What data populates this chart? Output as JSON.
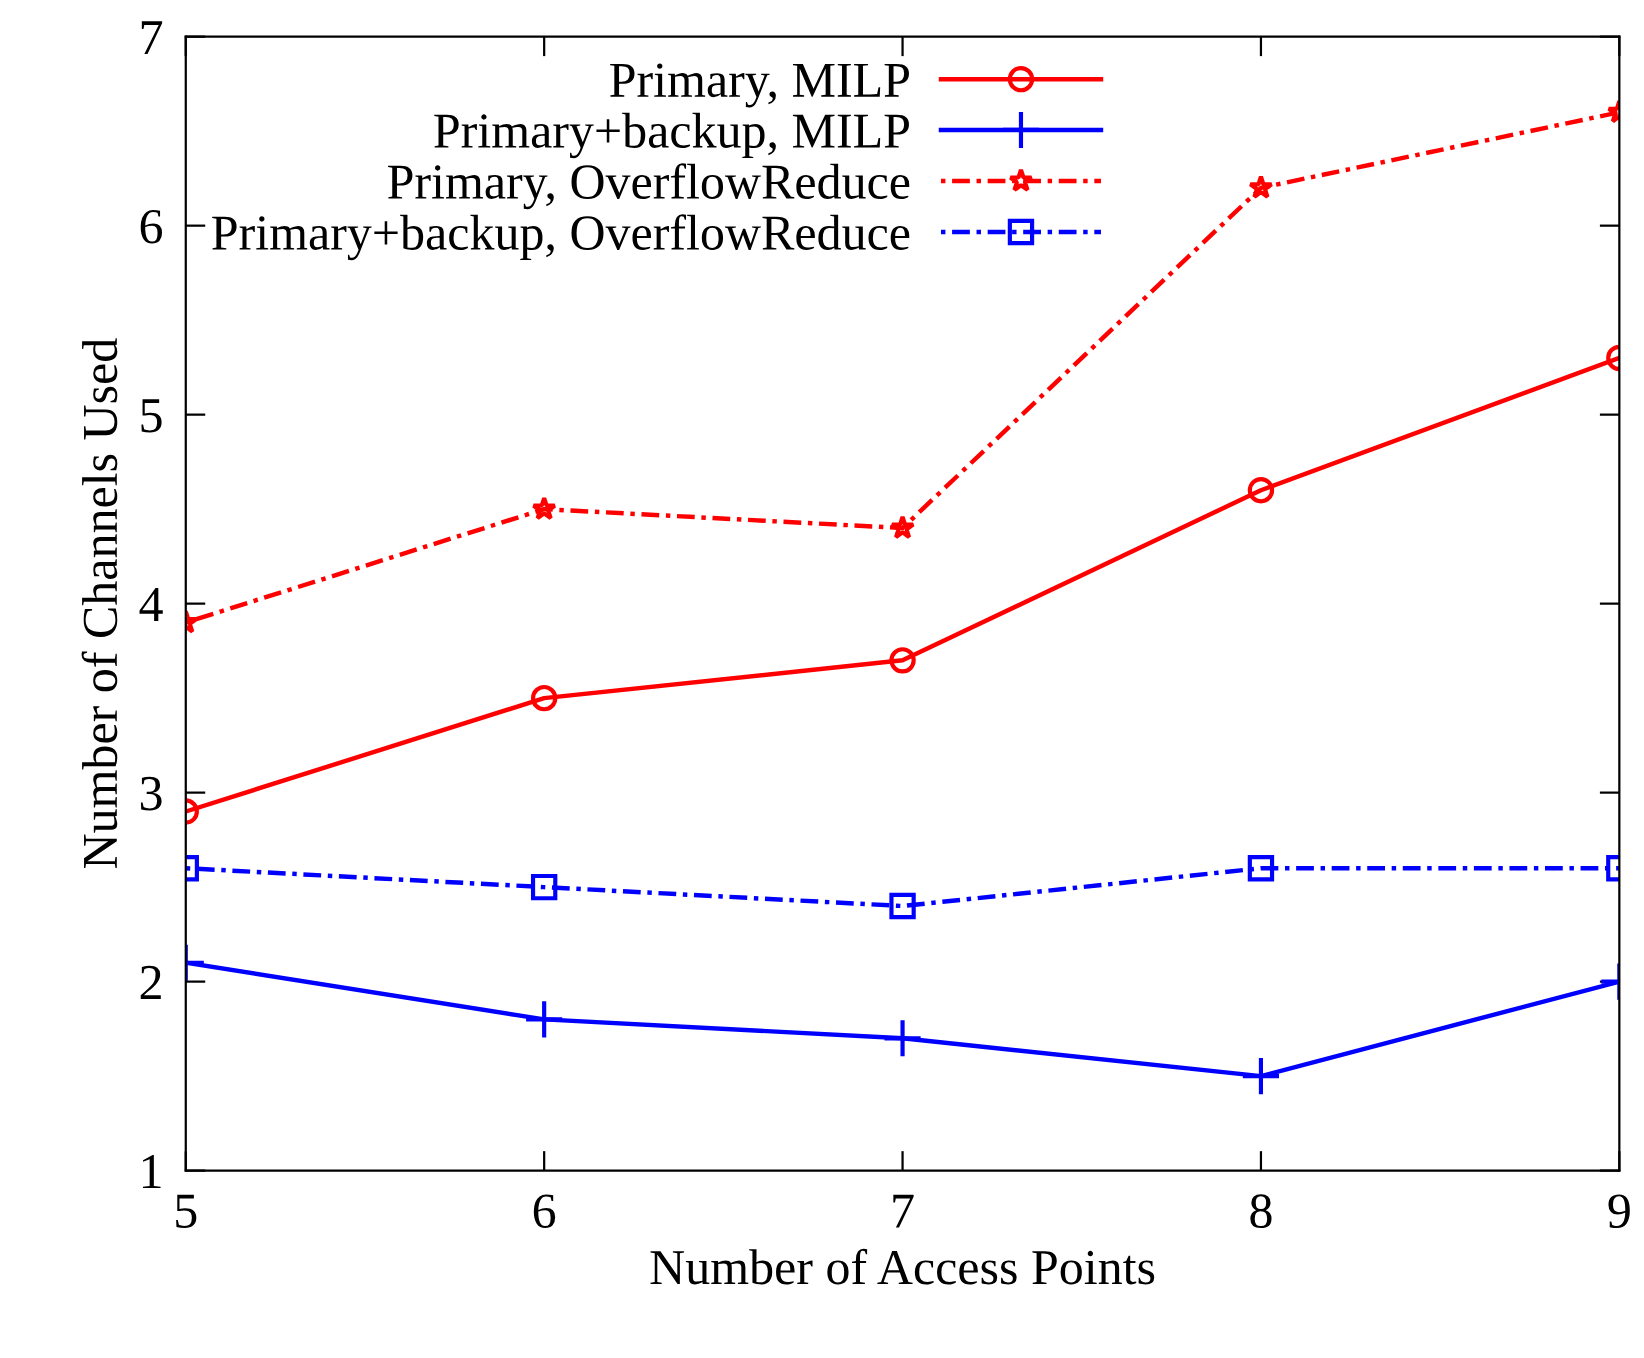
{
  "chart_data": {
    "type": "line",
    "xlabel": "Number of Access Points",
    "ylabel": "Number of Channels Used",
    "x": [
      5,
      6,
      7,
      8,
      9
    ],
    "series": [
      {
        "name": "Primary, MILP",
        "color": "#ff0000",
        "values": [
          2.9,
          3.5,
          3.7,
          4.6,
          5.3
        ],
        "marker": "circle",
        "line_style": "solid"
      },
      {
        "name": "Primary+backup, MILP",
        "color": "#0000ff",
        "values": [
          2.1,
          1.8,
          1.7,
          1.5,
          2.0
        ],
        "marker": "cross",
        "line_style": "solid"
      },
      {
        "name": "Primary, OverflowReduce",
        "color": "#ff0000",
        "values": [
          3.9,
          4.5,
          4.4,
          6.2,
          6.6
        ],
        "marker": "star",
        "line_style": "dotted"
      },
      {
        "name": "Primary+backup, OverflowReduce",
        "color": "#0000ff",
        "values": [
          2.6,
          2.5,
          2.4,
          2.6,
          2.6
        ],
        "marker": "square",
        "line_style": "dotted"
      }
    ],
    "xlim": [
      5,
      9
    ],
    "xticks": [
      5,
      6,
      7,
      8,
      9
    ],
    "ylim": [
      1,
      7
    ],
    "yticks": [
      1,
      2,
      3,
      4,
      5,
      6,
      7
    ],
    "grid": false,
    "legend": "top left"
  }
}
